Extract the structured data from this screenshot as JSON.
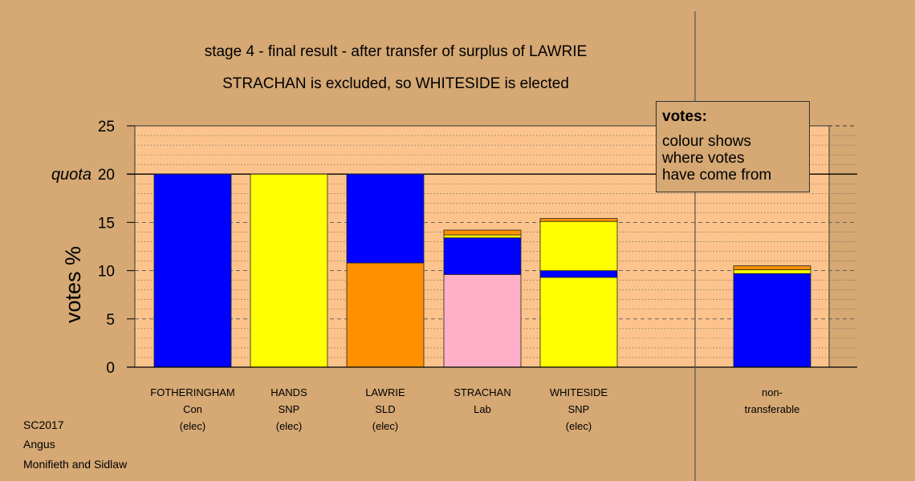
{
  "header": {
    "title_line1": "stage 4 - final result - after transfer of surplus of LAWRIE",
    "title_line2": "STRACHAN is excluded, so WHITESIDE is elected"
  },
  "legend": {
    "title": "votes:",
    "lines": [
      "colour shows",
      "where votes",
      "have come from"
    ]
  },
  "footer": [
    "SC2017",
    "Angus",
    "Monifieth and Sidlaw"
  ],
  "colors": {
    "background": "#d5a874",
    "plot_background": "#fcc48c",
    "Con": "#0000ff",
    "SNP": "#ffff00",
    "SLD": "#ff9000",
    "Lab": "#ffb0c8",
    "Other": "#d97f1a"
  },
  "chart_data": {
    "type": "bar",
    "stacked": true,
    "ylabel": "votes %",
    "ylim": [
      0,
      25
    ],
    "yticks": [
      0,
      5,
      10,
      15,
      20,
      25
    ],
    "quota": {
      "value": 20,
      "label": "quota"
    },
    "categories": [
      {
        "lines": [
          "FOTHERINGHAM",
          "Con",
          "(elec)"
        ]
      },
      {
        "lines": [
          "HANDS",
          "SNP",
          "(elec)"
        ]
      },
      {
        "lines": [
          "LAWRIE",
          "SLD",
          "(elec)"
        ]
      },
      {
        "lines": [
          "STRACHAN",
          "Lab"
        ]
      },
      {
        "lines": [
          "WHITESIDE",
          "SNP",
          "(elec)"
        ]
      },
      {
        "lines": [
          "non-",
          "transferable"
        ]
      }
    ],
    "bars": [
      [
        {
          "source": "Con",
          "value": 20.0
        }
      ],
      [
        {
          "source": "SNP",
          "value": 20.0
        }
      ],
      [
        {
          "source": "SLD",
          "value": 10.8
        },
        {
          "source": "Con",
          "value": 9.2
        }
      ],
      [
        {
          "source": "Lab",
          "value": 9.6
        },
        {
          "source": "Con",
          "value": 3.8
        },
        {
          "source": "SNP",
          "value": 0.3
        },
        {
          "source": "SLD",
          "value": 0.5
        }
      ],
      [
        {
          "source": "SNP",
          "value": 9.3
        },
        {
          "source": "Con",
          "value": 0.7
        },
        {
          "source": "SNP",
          "value": 5.1
        },
        {
          "source": "SLD",
          "value": 0.3
        }
      ],
      [
        {
          "source": "Con",
          "value": 9.7
        },
        {
          "source": "SNP",
          "value": 0.4
        },
        {
          "source": "SLD",
          "value": 0.4
        }
      ]
    ]
  }
}
